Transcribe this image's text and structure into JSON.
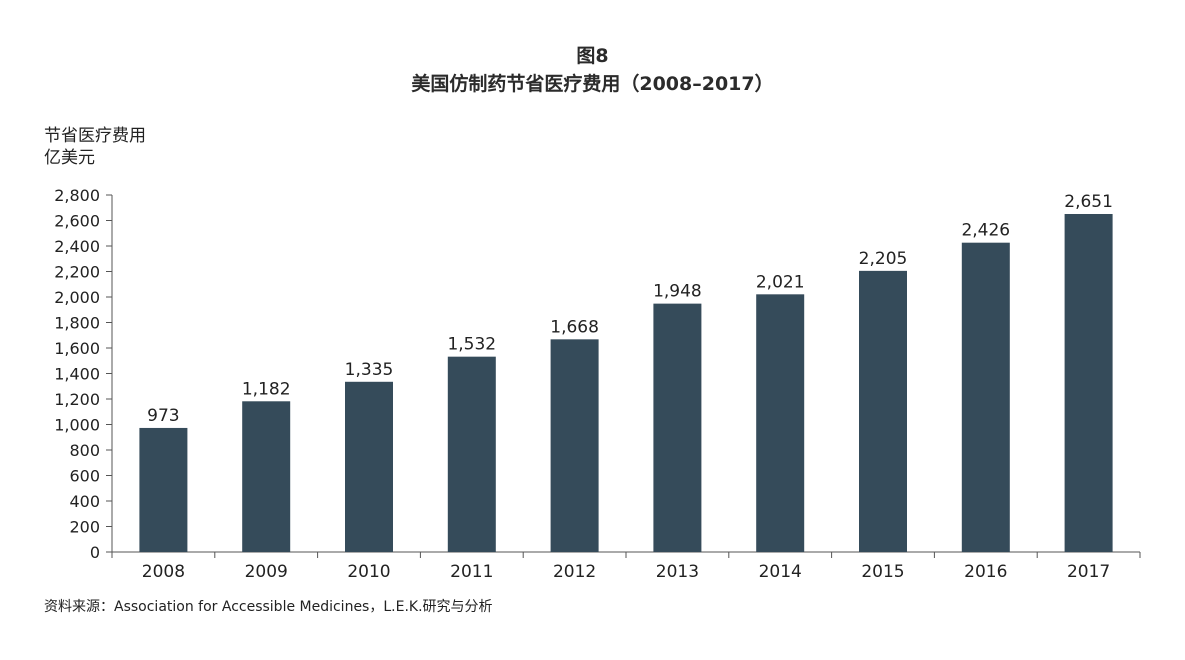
{
  "header": {
    "figure_label": "图8",
    "title": "美国仿制药节省医疗费用（2008–2017）"
  },
  "axis_label": {
    "line1": "节省医疗费用",
    "line2": "亿美元"
  },
  "footer": {
    "source": "资料来源：Association for Accessible Medicines，L.E.K.研究与分析"
  },
  "chart_data": {
    "type": "bar",
    "title": "美国仿制药节省医疗费用（2008–2017）",
    "ylabel": "节省医疗费用 亿美元",
    "xlabel": "",
    "categories": [
      "2008",
      "2009",
      "2010",
      "2011",
      "2012",
      "2013",
      "2014",
      "2015",
      "2016",
      "2017"
    ],
    "values": [
      973,
      1182,
      1335,
      1532,
      1668,
      1948,
      2021,
      2205,
      2426,
      2651
    ],
    "value_labels": [
      "973",
      "1,182",
      "1,335",
      "1,532",
      "1,668",
      "1,948",
      "2,021",
      "2,205",
      "2,426",
      "2,651"
    ],
    "ylim": [
      0,
      2800
    ],
    "yticks": [
      0,
      200,
      400,
      600,
      800,
      1000,
      1200,
      1400,
      1600,
      1800,
      2000,
      2200,
      2400,
      2600,
      2800
    ],
    "ytick_labels": [
      "0",
      "200",
      "400",
      "600",
      "800",
      "1,000",
      "1,200",
      "1,400",
      "1,600",
      "1,800",
      "2,000",
      "2,200",
      "2,400",
      "2,600",
      "2,800"
    ],
    "grid": false,
    "legend": "none",
    "bar_color": "#354b5a",
    "axis_color": "#555555"
  }
}
